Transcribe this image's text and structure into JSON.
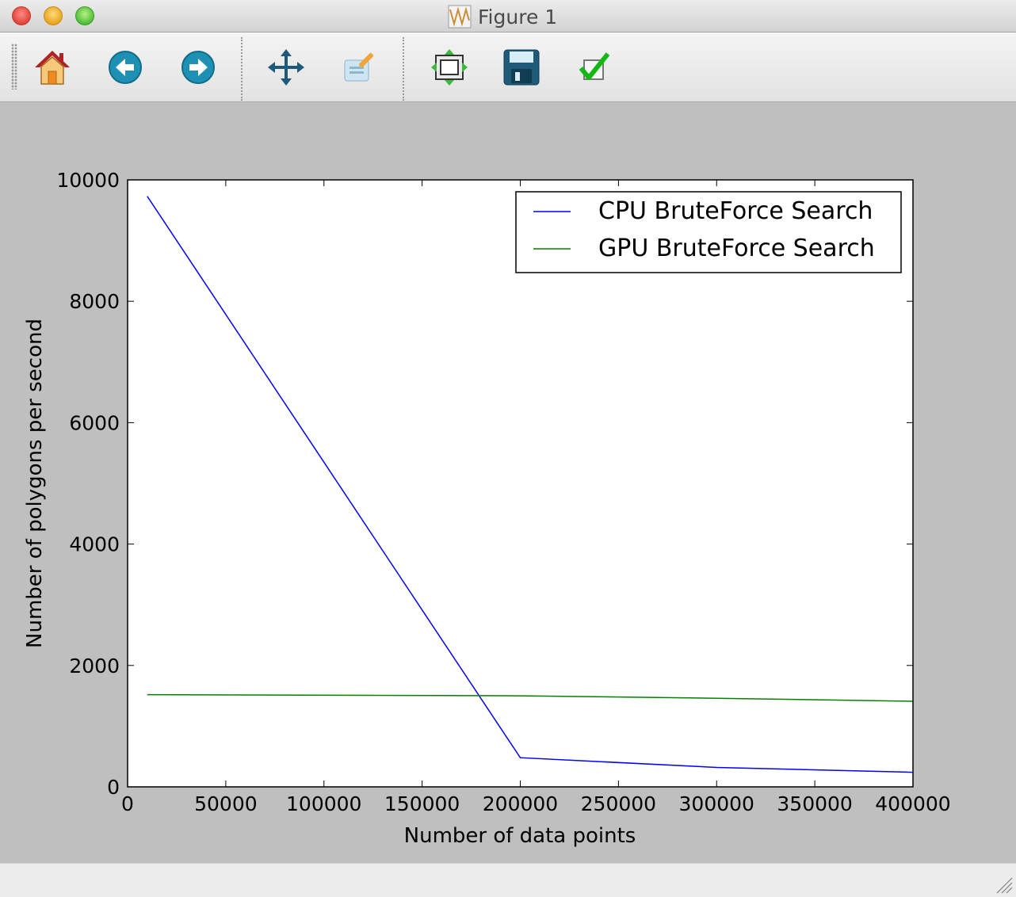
{
  "window": {
    "title": "Figure 1"
  },
  "toolbar": {
    "buttons": [
      {
        "name": "home",
        "icon": "home-icon"
      },
      {
        "name": "back",
        "icon": "back-arrow-icon"
      },
      {
        "name": "forward",
        "icon": "forward-arrow-icon"
      },
      {
        "name": "pan",
        "icon": "move-icon"
      },
      {
        "name": "zoom",
        "icon": "zoom-rect-icon"
      },
      {
        "name": "subplots",
        "icon": "subplots-icon"
      },
      {
        "name": "save",
        "icon": "floppy-disk-icon"
      },
      {
        "name": "edit",
        "icon": "checkmark-icon"
      }
    ]
  },
  "chart_data": {
    "type": "line",
    "title": "",
    "xlabel": "Number of data points",
    "ylabel": "Number of polygons per second",
    "xlim": [
      0,
      400000
    ],
    "ylim": [
      0,
      10000
    ],
    "xticks": [
      0,
      50000,
      100000,
      150000,
      200000,
      250000,
      300000,
      350000,
      400000
    ],
    "xtick_labels": [
      "0",
      "50000",
      "100000",
      "150000",
      "200000",
      "250000",
      "300000",
      "350000",
      "400000"
    ],
    "yticks": [
      0,
      2000,
      4000,
      6000,
      8000,
      10000
    ],
    "ytick_labels": [
      "0",
      "2000",
      "4000",
      "6000",
      "8000",
      "10000"
    ],
    "grid": false,
    "legend_position": "top-right",
    "series": [
      {
        "name": "CPU BruteForce Search",
        "color": "#0000ff",
        "points": [
          [
            10000,
            9730
          ],
          [
            200000,
            480
          ],
          [
            300000,
            320
          ],
          [
            400000,
            240
          ]
        ]
      },
      {
        "name": "GPU BruteForce Search",
        "color": "#008000",
        "points": [
          [
            10000,
            1520
          ],
          [
            200000,
            1500
          ],
          [
            300000,
            1460
          ],
          [
            400000,
            1410
          ]
        ]
      }
    ]
  }
}
